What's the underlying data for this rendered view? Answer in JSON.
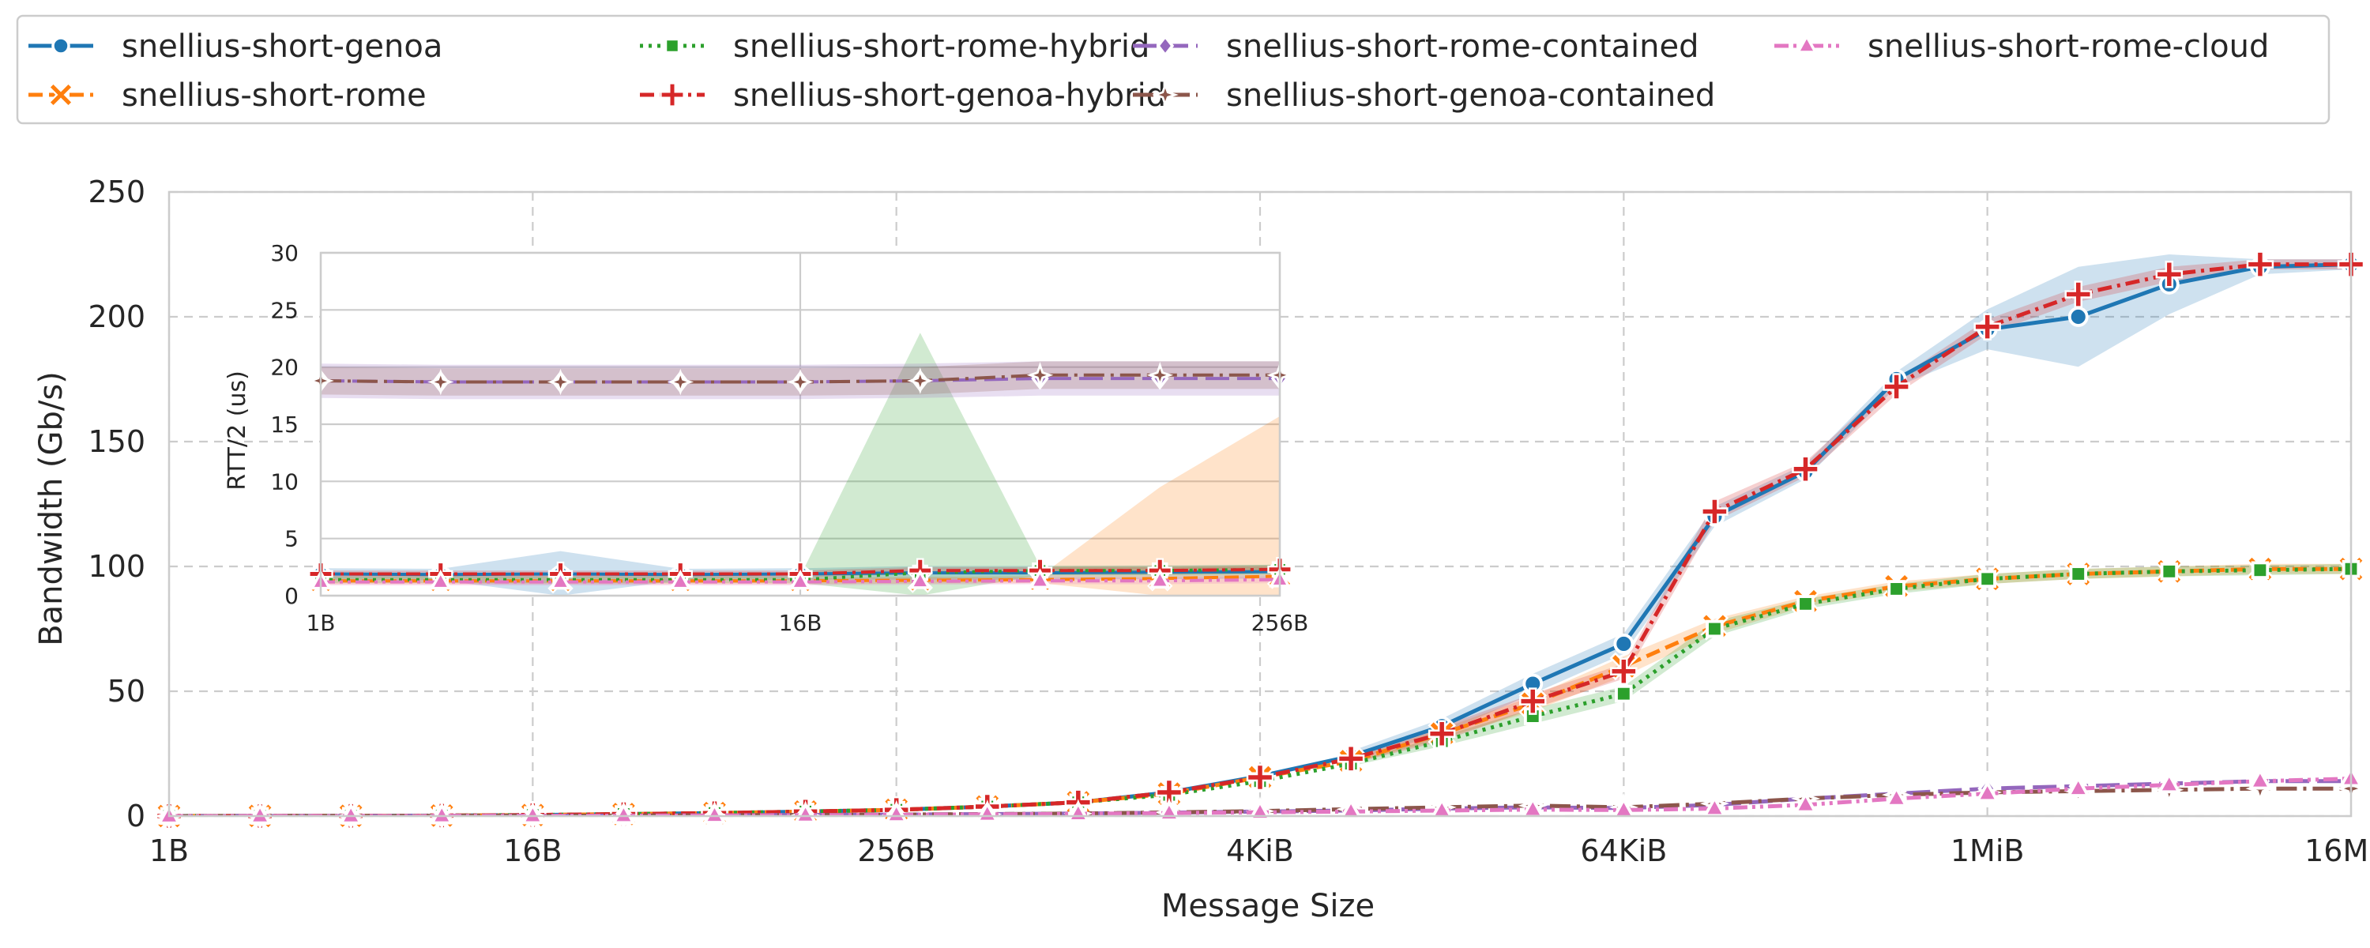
{
  "chart_data": [
    {
      "type": "line",
      "title": "",
      "xlabel": "Message Size",
      "ylabel": "Bandwidth (Gb/s)",
      "x_scale": "log2",
      "x": [
        "1B",
        "2B",
        "4B",
        "8B",
        "16B",
        "32B",
        "64B",
        "128B",
        "256B",
        "512B",
        "1KiB",
        "2KiB",
        "4KiB",
        "8KiB",
        "16KiB",
        "32KiB",
        "64KiB",
        "128KiB",
        "256KiB",
        "512KiB",
        "1MiB",
        "2MiB",
        "4MiB",
        "8MiB",
        "16MiB"
      ],
      "xticks": [
        "1B",
        "16B",
        "256B",
        "4KiB",
        "64KiB",
        "1MiB",
        "16MiB"
      ],
      "ylim": [
        0,
        250
      ],
      "yticks": [
        0,
        50,
        100,
        150,
        200,
        250
      ],
      "grid": true,
      "legend_position": "top",
      "series": [
        {
          "name": "snellius-short-genoa",
          "color": "#1f77b4",
          "marker": "circle",
          "dash": "solid",
          "values": [
            0.02,
            0.05,
            0.1,
            0.2,
            0.4,
            0.8,
            1.2,
            1.8,
            2.5,
            3.8,
            5.5,
            9.5,
            16,
            24,
            36,
            53,
            69,
            120,
            138,
            175,
            195,
            200,
            213,
            220,
            221
          ],
          "band": [
            null,
            null,
            null,
            null,
            null,
            null,
            null,
            null,
            null,
            null,
            null,
            null,
            null,
            2,
            3,
            4,
            4,
            4,
            3,
            3,
            8,
            20,
            12,
            3,
            2
          ]
        },
        {
          "name": "snellius-short-rome",
          "color": "#ff7f0e",
          "marker": "x",
          "dash": "dashed",
          "values": [
            0.02,
            0.05,
            0.1,
            0.2,
            0.4,
            0.8,
            1.2,
            1.8,
            2.5,
            3.8,
            5.5,
            9,
            15.5,
            22,
            33,
            45,
            60,
            76,
            86,
            92,
            95,
            97,
            98,
            99,
            99
          ],
          "band": [
            null,
            null,
            null,
            null,
            null,
            null,
            null,
            null,
            null,
            null,
            null,
            null,
            null,
            1,
            2,
            3,
            4,
            3,
            2,
            2,
            2,
            2,
            2,
            2,
            2
          ]
        },
        {
          "name": "snellius-short-rome-hybrid",
          "color": "#2ca02c",
          "marker": "square",
          "dash": "dotted",
          "values": [
            0.02,
            0.05,
            0.1,
            0.2,
            0.4,
            0.8,
            1.2,
            1.8,
            2.5,
            3.8,
            5.5,
            8.5,
            14,
            21,
            30,
            40,
            49,
            75,
            85,
            91,
            95,
            97,
            98,
            98.5,
            99
          ],
          "band": [
            null,
            null,
            null,
            null,
            null,
            null,
            null,
            null,
            null,
            null,
            null,
            null,
            null,
            1,
            2,
            3,
            3,
            3,
            2,
            2,
            2,
            2,
            2,
            2,
            2
          ]
        },
        {
          "name": "snellius-short-genoa-hybrid",
          "color": "#d62728",
          "marker": "plus",
          "dash": "dashdot",
          "values": [
            0.02,
            0.05,
            0.1,
            0.2,
            0.4,
            0.8,
            1.2,
            1.8,
            2.5,
            3.8,
            5.5,
            9.5,
            15.5,
            23,
            33,
            46,
            58,
            122,
            139,
            172,
            196,
            209,
            217,
            221,
            221
          ],
          "band": [
            null,
            null,
            null,
            null,
            null,
            null,
            null,
            null,
            null,
            null,
            null,
            null,
            null,
            2,
            3,
            3,
            3,
            4,
            3,
            3,
            3,
            3,
            3,
            2,
            2
          ]
        },
        {
          "name": "snellius-short-rome-contained",
          "color": "#9467bd",
          "marker": "diamond",
          "dash": "longdash",
          "values": [
            0.01,
            0.02,
            0.04,
            0.08,
            0.12,
            0.2,
            0.3,
            0.45,
            0.6,
            0.8,
            1,
            1.4,
            1.8,
            2.2,
            3,
            3.5,
            3.2,
            4.5,
            7,
            9,
            11,
            12,
            13,
            14,
            14
          ],
          "band": [
            null,
            null,
            null,
            null,
            null,
            null,
            null,
            null,
            null,
            null,
            null,
            null,
            null,
            null,
            null,
            null,
            null,
            null,
            null,
            null,
            null,
            null,
            null,
            null,
            null
          ]
        },
        {
          "name": "snellius-short-genoa-contained",
          "color": "#8c564b",
          "marker": "star",
          "dash": "longdashdot",
          "values": [
            0.01,
            0.02,
            0.04,
            0.08,
            0.12,
            0.2,
            0.3,
            0.45,
            0.6,
            0.8,
            1,
            1.5,
            2,
            2.8,
            3.5,
            4.2,
            3.5,
            5,
            7,
            8.5,
            9.5,
            10,
            10.5,
            11,
            11
          ],
          "band": [
            null,
            null,
            null,
            null,
            null,
            null,
            null,
            null,
            null,
            null,
            null,
            null,
            null,
            null,
            null,
            null,
            null,
            null,
            null,
            null,
            null,
            null,
            null,
            null,
            null
          ]
        },
        {
          "name": "snellius-short-rome-cloud",
          "color": "#e377c2",
          "marker": "triangle",
          "dash": "dashdotdot",
          "values": [
            0.01,
            0.02,
            0.04,
            0.06,
            0.1,
            0.15,
            0.25,
            0.35,
            0.5,
            0.7,
            0.9,
            1.2,
            1.5,
            1.8,
            2.2,
            2.6,
            2.4,
            3,
            4.5,
            7,
            9,
            11,
            12.5,
            14,
            15
          ],
          "band": [
            null,
            null,
            null,
            null,
            null,
            null,
            null,
            null,
            null,
            null,
            null,
            null,
            null,
            null,
            null,
            null,
            null,
            null,
            null,
            null,
            null,
            null,
            null,
            null,
            null
          ]
        }
      ]
    },
    {
      "type": "line",
      "title": "",
      "xlabel": "",
      "ylabel": "RTT/2 (us)",
      "x_scale": "log2",
      "x": [
        "1B",
        "2B",
        "4B",
        "8B",
        "16B",
        "32B",
        "64B",
        "128B",
        "256B"
      ],
      "xticks": [
        "1B",
        "16B",
        "256B"
      ],
      "ylim": [
        0,
        30
      ],
      "yticks": [
        0,
        5,
        10,
        15,
        20,
        25,
        30
      ],
      "grid": true,
      "series": [
        {
          "name": "snellius-short-genoa",
          "values": [
            1.9,
            1.85,
            1.9,
            1.85,
            1.9,
            2.0,
            2.0,
            2.05,
            2.1
          ],
          "band": [
            0.5,
            0.5,
            2,
            0.5,
            0.5,
            0.6,
            0.6,
            0.6,
            0.6
          ]
        },
        {
          "name": "snellius-short-rome",
          "values": [
            1.3,
            1.3,
            1.3,
            1.3,
            1.3,
            1.35,
            1.4,
            1.5,
            1.7
          ],
          "band": [
            0.3,
            0.3,
            0.3,
            0.3,
            0.3,
            0.3,
            0.3,
            8,
            14
          ]
        },
        {
          "name": "snellius-short-rome-hybrid",
          "values": [
            1.4,
            1.4,
            1.4,
            1.4,
            1.4,
            2.0,
            2.2,
            2.2,
            2.3
          ],
          "band": [
            0.3,
            0.3,
            0.3,
            0.3,
            0.3,
            21,
            0.4,
            0.4,
            0.4
          ]
        },
        {
          "name": "snellius-short-genoa-hybrid",
          "values": [
            1.9,
            1.9,
            1.9,
            1.9,
            1.9,
            2.2,
            2.2,
            2.2,
            2.3
          ],
          "band": [
            0.3,
            0.3,
            0.3,
            0.3,
            0.3,
            0.3,
            0.3,
            0.3,
            0.3
          ]
        },
        {
          "name": "snellius-short-rome-contained",
          "values": [
            18.8,
            18.7,
            18.7,
            18.7,
            18.7,
            18.8,
            19.0,
            19.0,
            19.0
          ],
          "band": [
            1.5,
            1.5,
            1.5,
            1.5,
            1.5,
            1.5,
            1.5,
            1.5,
            1.5
          ]
        },
        {
          "name": "snellius-short-genoa-contained",
          "values": [
            18.8,
            18.7,
            18.7,
            18.7,
            18.7,
            18.8,
            19.3,
            19.3,
            19.3
          ],
          "band": [
            1.2,
            1.2,
            1.2,
            1.2,
            1.2,
            1.2,
            1.2,
            1.2,
            1.2
          ]
        },
        {
          "name": "snellius-short-rome-cloud",
          "values": [
            1.2,
            1.2,
            1.2,
            1.2,
            1.2,
            1.25,
            1.3,
            1.3,
            1.4
          ],
          "band": [
            0.3,
            0.3,
            0.3,
            0.3,
            0.3,
            0.3,
            0.3,
            0.3,
            0.3
          ]
        }
      ]
    }
  ]
}
